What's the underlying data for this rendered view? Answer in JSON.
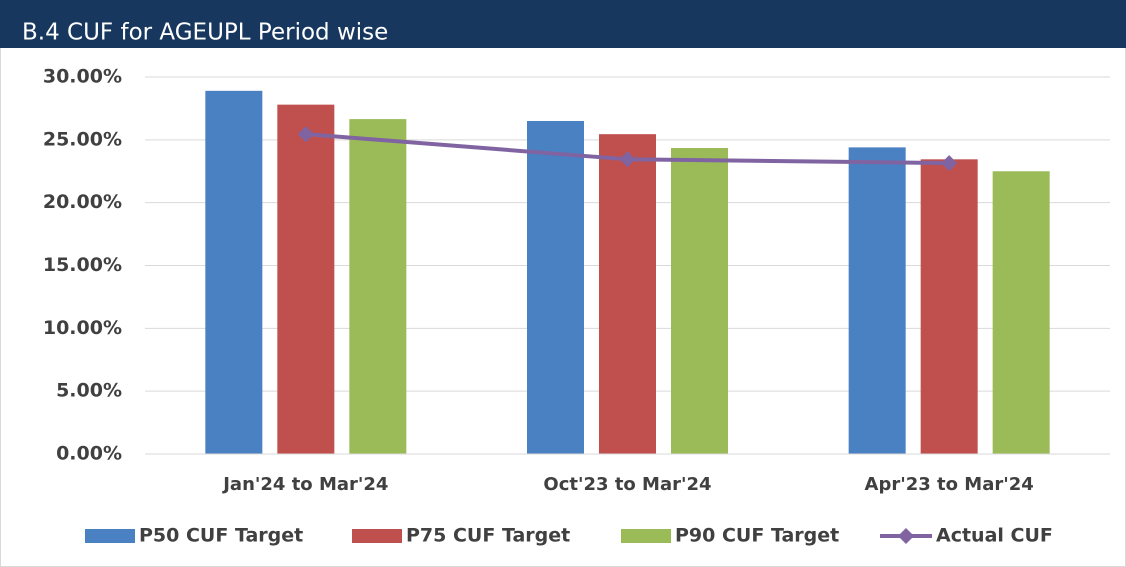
{
  "chart_data": {
    "type": "bar",
    "title": "B.4 CUF for AGEUPL Period wise",
    "categories": [
      "Jan'24 to Mar'24",
      "Oct'23 to Mar'24",
      "Apr'23 to Mar'24"
    ],
    "series": [
      {
        "name": "P50 CUF Target",
        "color": "#4a81c3",
        "type": "bar",
        "values": [
          28.9,
          26.5,
          24.4
        ]
      },
      {
        "name": "P75 CUF Target",
        "color": "#c0504d",
        "type": "bar",
        "values": [
          27.8,
          25.45,
          23.45
        ]
      },
      {
        "name": "P90 CUF Target",
        "color": "#9bbb59",
        "type": "bar",
        "values": [
          26.65,
          24.35,
          22.5
        ]
      },
      {
        "name": "Actual CUF",
        "color": "#8064a2",
        "type": "line",
        "values": [
          25.45,
          23.45,
          23.15
        ]
      }
    ],
    "ylim": [
      0,
      30
    ],
    "yticks": [
      {
        "value": 0,
        "label": "0.00%"
      },
      {
        "value": 5,
        "label": "5.00%"
      },
      {
        "value": 10,
        "label": "10.00%"
      },
      {
        "value": 15,
        "label": "15.00%"
      },
      {
        "value": 20,
        "label": "20.00%"
      },
      {
        "value": 25,
        "label": "25.00%"
      },
      {
        "value": 30,
        "label": "30.00%"
      }
    ],
    "grid": true,
    "legend": "bottom"
  }
}
